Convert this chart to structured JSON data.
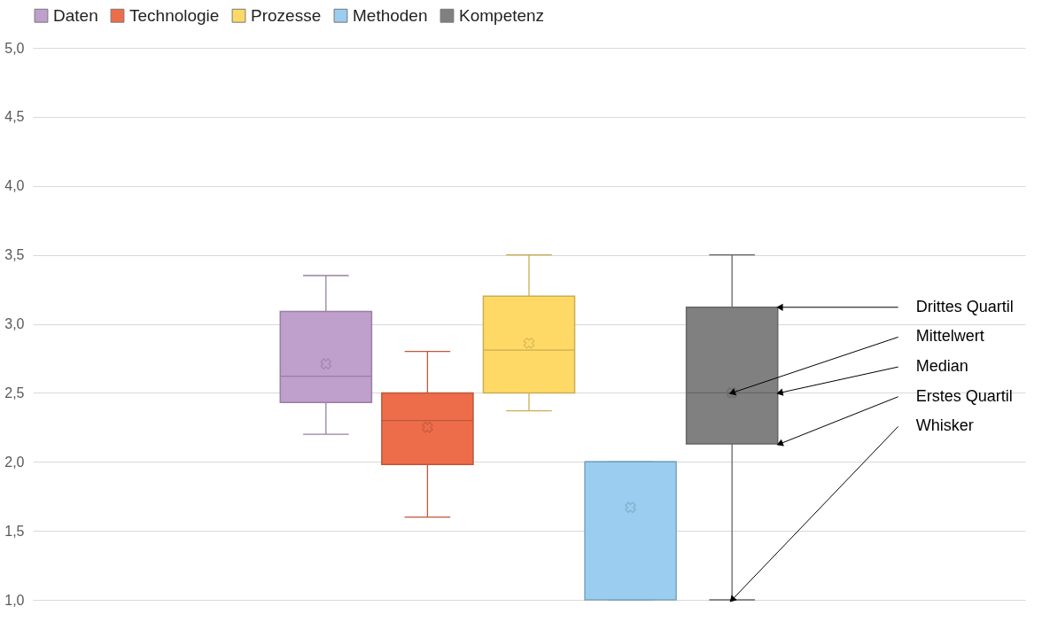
{
  "chart_data": {
    "type": "box",
    "categories": [
      null
    ],
    "legend": "top",
    "grid": "y",
    "tick_labels": "y",
    "marker": "cross",
    "ylim": [
      1,
      5
    ],
    "yticks": [
      {
        "value": 1,
        "label": "1,0"
      },
      {
        "value": 1.5,
        "label": "1,5"
      },
      {
        "value": 2,
        "label": "2,0"
      },
      {
        "value": 2.5,
        "label": "2,5"
      },
      {
        "value": 3,
        "label": "3,0"
      },
      {
        "value": 3.5,
        "label": "3,5"
      },
      {
        "value": 4,
        "label": "4,0"
      },
      {
        "value": 4.5,
        "label": "4,5"
      },
      {
        "value": 5,
        "label": "5,0"
      }
    ],
    "series": [
      {
        "name": "Daten",
        "color": "#bf9fcc",
        "boxes": [
          {
            "low": 2.2,
            "q1": 2.43,
            "median": 2.62,
            "q3": 3.09,
            "high": 3.35,
            "mean": 2.71
          }
        ]
      },
      {
        "name": "Technologie",
        "color": "#ed6d4a",
        "boxes": [
          {
            "low": 1.6,
            "q1": 1.98,
            "median": 2.3,
            "q3": 2.5,
            "high": 2.8,
            "mean": 2.25
          }
        ]
      },
      {
        "name": "Prozesse",
        "color": "#ffd966",
        "boxes": [
          {
            "low": 2.37,
            "q1": 2.5,
            "median": 2.81,
            "q3": 3.2,
            "high": 3.5,
            "mean": 2.86
          }
        ]
      },
      {
        "name": "Methoden",
        "color": "#9acdef",
        "boxes": [
          {
            "low": 1,
            "q1": 1,
            "median": 2,
            "q3": 2,
            "high": 2,
            "mean": 1.67
          }
        ]
      },
      {
        "name": "Kompetenz",
        "color": "#808080",
        "boxes": [
          {
            "low": 1,
            "q1": 2.13,
            "median": 2.5,
            "q3": 3.12,
            "high": 3.5,
            "mean": 2.5
          }
        ]
      }
    ],
    "annotations": [
      "Drittes Quartil",
      "Mittelwert",
      "Median",
      "Erstes Quartil",
      "Whisker"
    ]
  }
}
